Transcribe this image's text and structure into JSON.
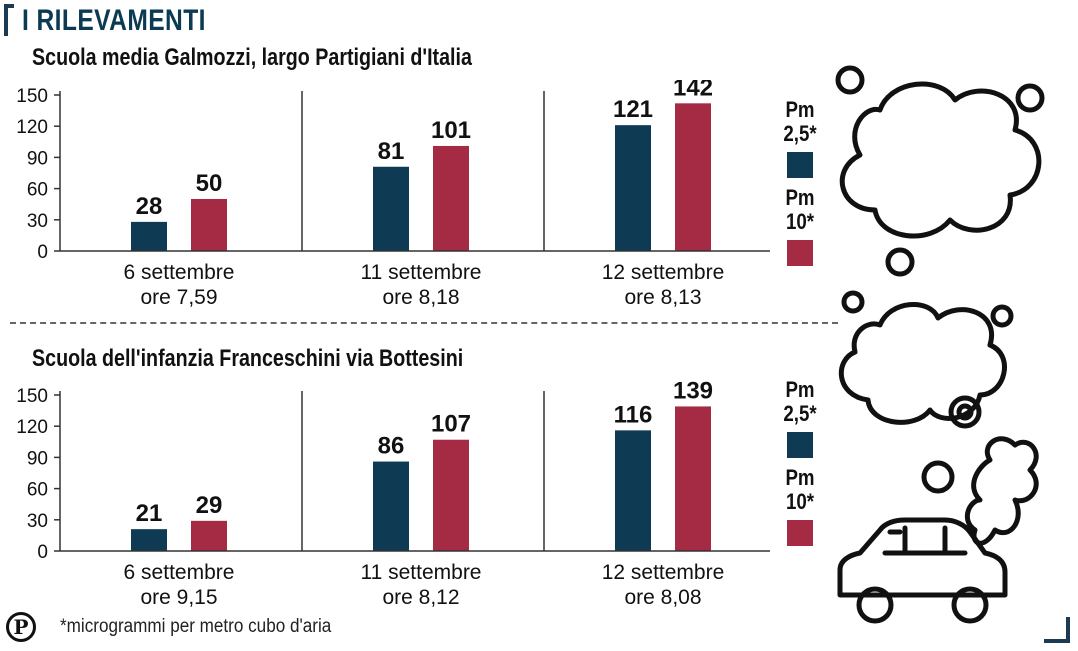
{
  "heading": "I RILEVAMENTI",
  "colors": {
    "pm25": "#0e3a54",
    "pm10": "#a52a43",
    "text": "#111111",
    "grid": "#333333"
  },
  "legend": {
    "pm25_label": "Pm 2,5*",
    "pm10_label": "Pm 10*"
  },
  "footnote": "*microgrammi per metro cubo d'aria",
  "logo_letter": "P",
  "chart_data": [
    {
      "type": "bar",
      "title": "Scuola media Galmozzi, largo Partigiani d'Italia",
      "categories": [
        [
          "6 settembre",
          "ore 7,59"
        ],
        [
          "11 settembre",
          "ore 8,18"
        ],
        [
          "12 settembre",
          "ore 8,13"
        ]
      ],
      "series": [
        {
          "name": "Pm 2,5*",
          "values": [
            28,
            81,
            121
          ]
        },
        {
          "name": "Pm 10*",
          "values": [
            50,
            101,
            142
          ]
        }
      ],
      "yticks": [
        0,
        30,
        60,
        90,
        120,
        150
      ],
      "ylim": [
        0,
        150
      ],
      "xlabel": "",
      "ylabel": ""
    },
    {
      "type": "bar",
      "title": "Scuola dell'infanzia Franceschini via Bottesini",
      "categories": [
        [
          "6 settembre",
          "ore 9,15"
        ],
        [
          "11 settembre",
          "ore 8,12"
        ],
        [
          "12 settembre",
          "ore 8,08"
        ]
      ],
      "series": [
        {
          "name": "Pm 2,5*",
          "values": [
            21,
            86,
            116
          ]
        },
        {
          "name": "Pm 10*",
          "values": [
            29,
            107,
            139
          ]
        }
      ],
      "yticks": [
        0,
        30,
        60,
        90,
        120,
        150
      ],
      "ylim": [
        0,
        150
      ],
      "xlabel": "",
      "ylabel": ""
    }
  ]
}
